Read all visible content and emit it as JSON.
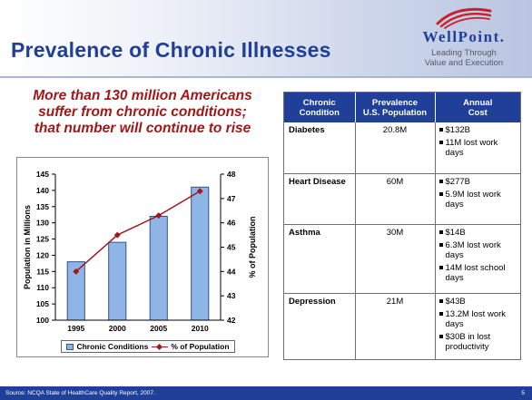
{
  "slide": {
    "title": "Prevalence of Chronic Illnesses",
    "headline_lines": [
      "More than 130 million Americans",
      "suffer from chronic conditions;",
      "that number will continue to rise"
    ],
    "logo": {
      "wordmark": "WellPoint.",
      "tagline_lines": [
        "Leading Through",
        "Value and Execution"
      ]
    },
    "footer": {
      "source": "Source: NCQA State of HealthCare Quality Report, 2007.",
      "page_number": "5"
    }
  },
  "chart_data": {
    "type": "bar",
    "categories": [
      "1995",
      "2000",
      "2005",
      "2010"
    ],
    "series": [
      {
        "name": "Chronic Conditions",
        "type": "bar",
        "axis": "left",
        "values": [
          118,
          124,
          132,
          141
        ]
      },
      {
        "name": "% of Population",
        "type": "line",
        "axis": "right",
        "values": [
          44.0,
          45.5,
          46.3,
          47.3
        ]
      }
    ],
    "ylabel": "Population in Millions",
    "y2label": "% of Population",
    "ylim": [
      100,
      145
    ],
    "yticks": [
      "100",
      "105",
      "110",
      "115",
      "120",
      "125",
      "130",
      "135",
      "140",
      "145"
    ],
    "y2lim": [
      42,
      48
    ],
    "y2ticks": [
      "42",
      "43",
      "44",
      "45",
      "46",
      "47",
      "48"
    ],
    "colors": {
      "bar": "#8fb4e6",
      "bar_edge": "#36528a",
      "line": "#a01818"
    },
    "grid": false,
    "legend": "bottom"
  },
  "table": {
    "headers": [
      [
        "Chronic",
        "Condition"
      ],
      [
        "Prevalence",
        "U.S. Population"
      ],
      [
        "Annual",
        "Cost"
      ]
    ],
    "rows": [
      {
        "condition": "Diabetes",
        "prevalence": "20.8M",
        "costs": [
          "$132B",
          "11M lost work days"
        ]
      },
      {
        "condition": "Heart Disease",
        "prevalence": "60M",
        "costs": [
          "$277B",
          "5.9M lost work days"
        ]
      },
      {
        "condition": "Asthma",
        "prevalence": "30M",
        "costs": [
          "$14B",
          "6.3M lost work days",
          "14M lost school days"
        ]
      },
      {
        "condition": "Depression",
        "prevalence": "21M",
        "costs": [
          "$43B",
          "13.2M lost work days",
          "$30B in lost productivity"
        ]
      }
    ]
  },
  "colors": {
    "brand_blue": "#1f3f99",
    "headline_red": "#a01818",
    "logo_red": "#c8202e"
  }
}
